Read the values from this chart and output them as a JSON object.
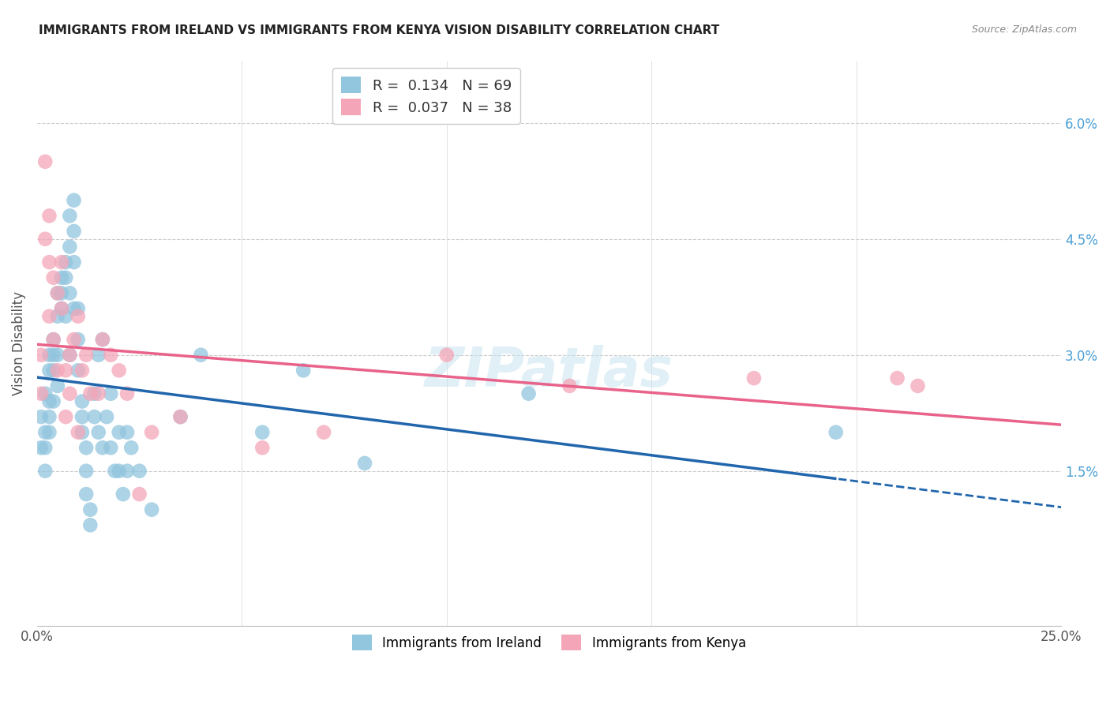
{
  "title": "IMMIGRANTS FROM IRELAND VS IMMIGRANTS FROM KENYA VISION DISABILITY CORRELATION CHART",
  "source": "Source: ZipAtlas.com",
  "ylabel": "Vision Disability",
  "ylabel_right_ticks": [
    "1.5%",
    "3.0%",
    "4.5%",
    "6.0%"
  ],
  "ylabel_right_vals": [
    0.015,
    0.03,
    0.045,
    0.06
  ],
  "xlim": [
    0.0,
    0.25
  ],
  "ylim": [
    -0.005,
    0.068
  ],
  "legend1_R": "0.134",
  "legend1_N": "69",
  "legend2_R": "0.037",
  "legend2_N": "38",
  "color_ireland": "#92c5de",
  "color_kenya": "#f4a6b8",
  "color_ireland_line": "#2166ac",
  "color_kenya_line": "#e8628a",
  "watermark": "ZIPatlas",
  "ireland_x": [
    0.001,
    0.001,
    0.002,
    0.002,
    0.002,
    0.002,
    0.003,
    0.003,
    0.003,
    0.003,
    0.003,
    0.004,
    0.004,
    0.004,
    0.004,
    0.005,
    0.005,
    0.005,
    0.005,
    0.006,
    0.006,
    0.006,
    0.007,
    0.007,
    0.007,
    0.008,
    0.008,
    0.008,
    0.008,
    0.009,
    0.009,
    0.009,
    0.009,
    0.01,
    0.01,
    0.01,
    0.011,
    0.011,
    0.011,
    0.012,
    0.012,
    0.012,
    0.013,
    0.013,
    0.014,
    0.014,
    0.015,
    0.015,
    0.016,
    0.016,
    0.017,
    0.018,
    0.018,
    0.019,
    0.02,
    0.02,
    0.021,
    0.022,
    0.022,
    0.023,
    0.025,
    0.028,
    0.035,
    0.04,
    0.055,
    0.065,
    0.08,
    0.12,
    0.195
  ],
  "ireland_y": [
    0.022,
    0.018,
    0.025,
    0.02,
    0.018,
    0.015,
    0.03,
    0.028,
    0.024,
    0.022,
    0.02,
    0.032,
    0.03,
    0.028,
    0.024,
    0.038,
    0.035,
    0.03,
    0.026,
    0.04,
    0.038,
    0.036,
    0.042,
    0.04,
    0.035,
    0.048,
    0.044,
    0.038,
    0.03,
    0.05,
    0.046,
    0.042,
    0.036,
    0.036,
    0.032,
    0.028,
    0.024,
    0.022,
    0.02,
    0.018,
    0.015,
    0.012,
    0.01,
    0.008,
    0.025,
    0.022,
    0.03,
    0.02,
    0.032,
    0.018,
    0.022,
    0.025,
    0.018,
    0.015,
    0.02,
    0.015,
    0.012,
    0.02,
    0.015,
    0.018,
    0.015,
    0.01,
    0.022,
    0.03,
    0.02,
    0.028,
    0.016,
    0.025,
    0.02
  ],
  "kenya_x": [
    0.001,
    0.001,
    0.002,
    0.002,
    0.003,
    0.003,
    0.003,
    0.004,
    0.004,
    0.005,
    0.005,
    0.006,
    0.006,
    0.007,
    0.007,
    0.008,
    0.008,
    0.009,
    0.01,
    0.01,
    0.011,
    0.012,
    0.013,
    0.015,
    0.016,
    0.018,
    0.02,
    0.022,
    0.025,
    0.028,
    0.035,
    0.055,
    0.07,
    0.1,
    0.13,
    0.175,
    0.21,
    0.215
  ],
  "kenya_y": [
    0.03,
    0.025,
    0.055,
    0.045,
    0.048,
    0.042,
    0.035,
    0.04,
    0.032,
    0.038,
    0.028,
    0.042,
    0.036,
    0.022,
    0.028,
    0.03,
    0.025,
    0.032,
    0.02,
    0.035,
    0.028,
    0.03,
    0.025,
    0.025,
    0.032,
    0.03,
    0.028,
    0.025,
    0.012,
    0.02,
    0.022,
    0.018,
    0.02,
    0.03,
    0.026,
    0.027,
    0.027,
    0.026
  ]
}
